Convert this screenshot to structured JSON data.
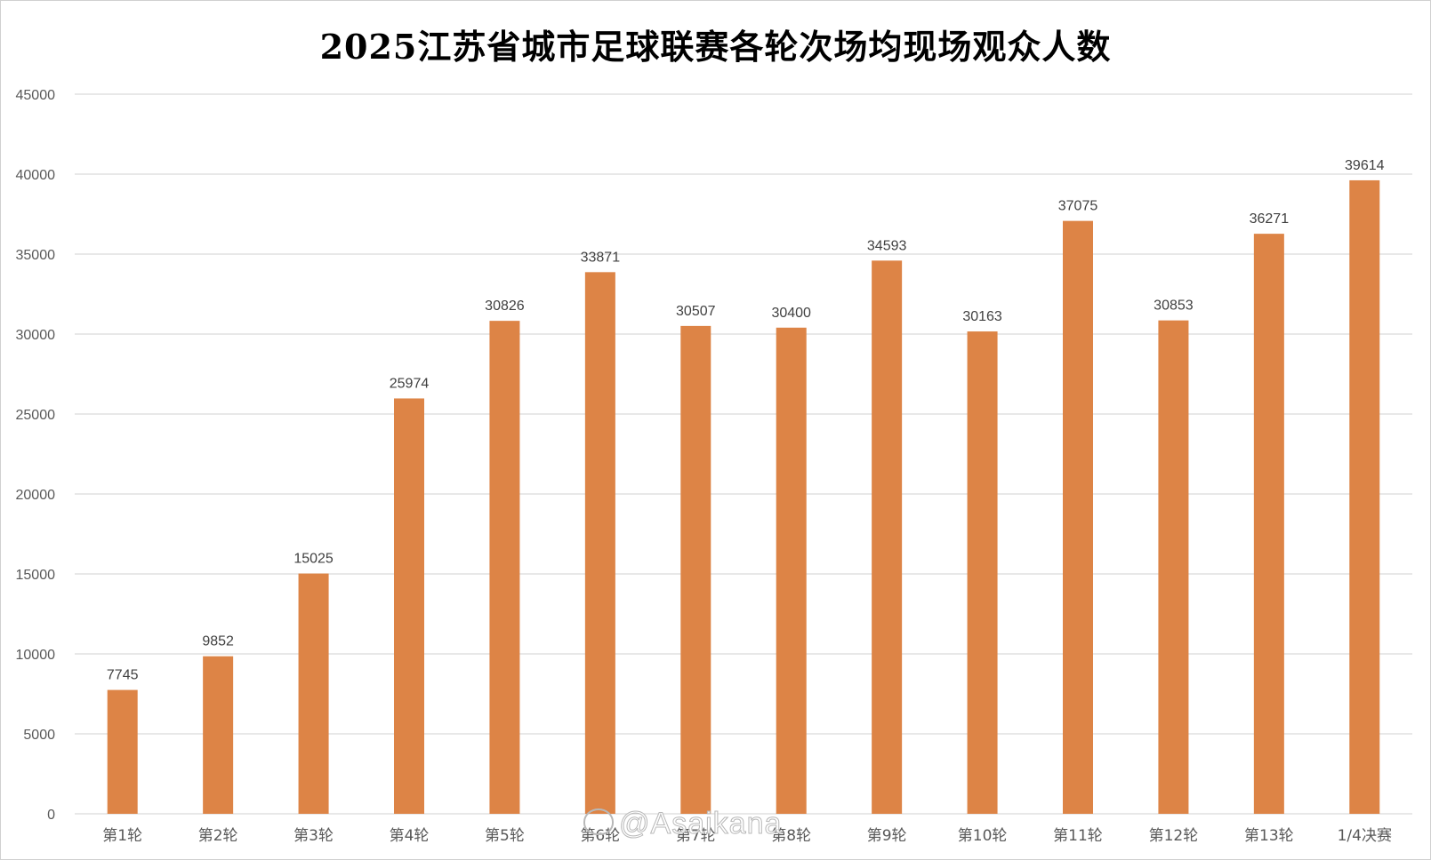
{
  "chart_data": {
    "type": "bar",
    "title": "2025江苏省城市足球联赛各轮次场均现场观众人数",
    "xlabel": "",
    "ylabel": "",
    "categories": [
      "第1轮",
      "第2轮",
      "第3轮",
      "第4轮",
      "第5轮",
      "第6轮",
      "第7轮",
      "第8轮",
      "第9轮",
      "第10轮",
      "第11轮",
      "第12轮",
      "第13轮",
      "1/4决赛"
    ],
    "values": [
      7745,
      9852,
      15025,
      25974,
      30826,
      33871,
      30507,
      30400,
      34593,
      30163,
      37075,
      30853,
      36271,
      39614
    ],
    "ylim": [
      0,
      45000
    ],
    "yticks": [
      0,
      5000,
      10000,
      15000,
      20000,
      25000,
      30000,
      35000,
      40000,
      45000
    ],
    "grid": true,
    "legend": "none",
    "bar_color": "#dd8446",
    "gridline_color": "#d9d9d9"
  },
  "watermark": {
    "text": "@Asaikana",
    "icon": "weibo-icon"
  }
}
